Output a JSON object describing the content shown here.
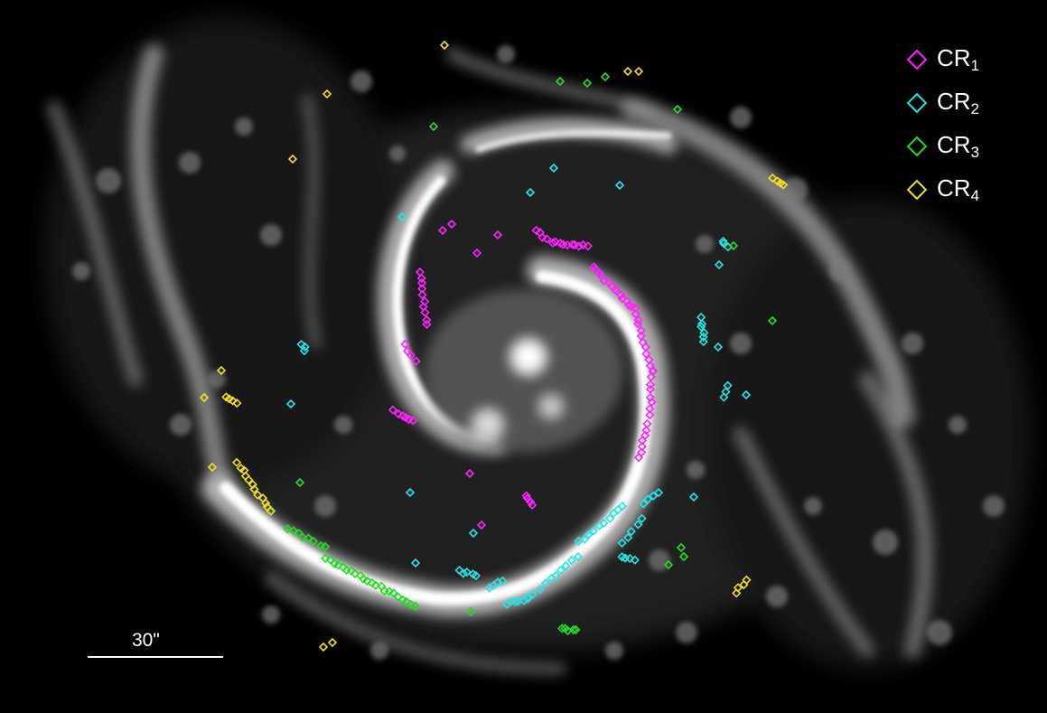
{
  "legend": {
    "items": [
      {
        "label": "CR",
        "sub": "1",
        "color": "#ff22ff"
      },
      {
        "label": "CR",
        "sub": "2",
        "color": "#22e6e6"
      },
      {
        "label": "CR",
        "sub": "3",
        "color": "#22dd22"
      },
      {
        "label": "CR",
        "sub": "4",
        "color": "#f0e020"
      }
    ]
  },
  "scale_bar": {
    "label": "30\""
  }
}
